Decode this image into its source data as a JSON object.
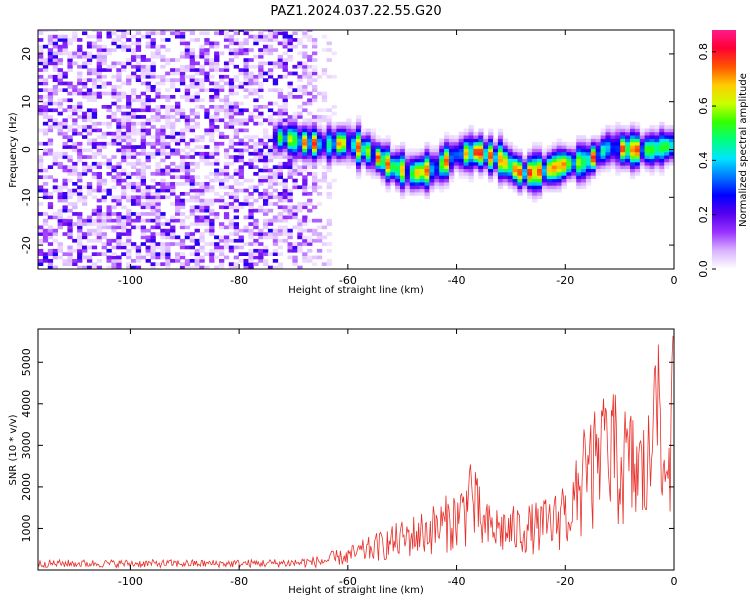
{
  "figure": {
    "title": "PAZ1.2024.037.22.55.G20"
  },
  "chart_data": [
    {
      "type": "heatmap",
      "xlabel": "Height of straight line (km)",
      "ylabel": "Frequency (Hz)",
      "xlim": [
        -117,
        0
      ],
      "ylim": [
        -25,
        25
      ],
      "xticks": [
        -100,
        -80,
        -60,
        -40,
        -20,
        0
      ],
      "yticks": [
        -20,
        -10,
        0,
        10,
        20
      ],
      "grid": false,
      "colorbar": {
        "label": "Normalized spectral amplitude",
        "range": [
          0,
          0.88
        ],
        "ticks": [
          0.0,
          0.2,
          0.4,
          0.6,
          0.8
        ],
        "colormap": [
          "#ffffff",
          "#d9b3ff",
          "#9933ff",
          "#5500ee",
          "#0000ff",
          "#0077ff",
          "#00e5ff",
          "#00ff80",
          "#33ff00",
          "#ccff00",
          "#ffcc00",
          "#ff5500",
          "#ff0033",
          "#ff1a8c"
        ]
      },
      "ridge": {
        "x": [
          -72,
          -68,
          -64,
          -60,
          -56,
          -52,
          -48,
          -44,
          -40,
          -36,
          -32,
          -28,
          -24,
          -20,
          -16,
          -12,
          -8,
          -4,
          0
        ],
        "freq": [
          2.5,
          1.5,
          1.0,
          1.5,
          -0.5,
          -3.5,
          -5.0,
          -4.0,
          -1.0,
          -0.5,
          -2.0,
          -5.0,
          -4.5,
          -3.0,
          -2.5,
          0.5,
          0.0,
          0.0,
          1.0
        ]
      },
      "noise_region_x": [
        -117,
        -62
      ]
    },
    {
      "type": "line",
      "xlabel": "Height of straight line (km)",
      "ylabel": "SNR (10 * v/v)",
      "xlim": [
        -117,
        0
      ],
      "ylim": [
        0,
        5800
      ],
      "xticks": [
        -100,
        -80,
        -60,
        -40,
        -20,
        0
      ],
      "yticks": [
        1000,
        2000,
        3000,
        4000,
        5000
      ],
      "color": "#e8302a",
      "envelope": {
        "x": [
          -117,
          -80,
          -70,
          -65,
          -60,
          -55,
          -50,
          -45,
          -40,
          -37,
          -35,
          -30,
          -25,
          -22,
          -20,
          -17,
          -15,
          -12,
          -10,
          -7,
          -5,
          -3,
          -2,
          -1,
          0
        ],
        "y": [
          150,
          150,
          180,
          250,
          500,
          800,
          1100,
          1400,
          1800,
          2400,
          1500,
          1400,
          1500,
          1700,
          1900,
          2700,
          3400,
          4000,
          3800,
          3500,
          3300,
          5200,
          3000,
          4400,
          5600
        ]
      },
      "peaks": [
        {
          "x": -37.5,
          "y": 2700
        },
        {
          "x": -20.5,
          "y": 2000
        },
        {
          "x": -16.5,
          "y": 3600
        },
        {
          "x": -13,
          "y": 4300
        },
        {
          "x": -3.5,
          "y": 5350
        },
        {
          "x": -0.2,
          "y": 5750
        }
      ]
    }
  ]
}
